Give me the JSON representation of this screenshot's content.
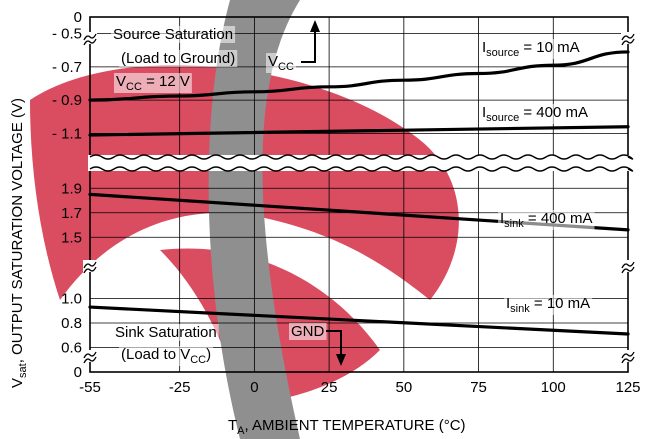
{
  "chart_data": {
    "type": "line",
    "x": [
      -55,
      125
    ],
    "xlabel": {
      "main": "T",
      "sub": "A",
      "rest": ", AMBIENT TEMPERATURE (°C)"
    },
    "ylabel": {
      "main": "V",
      "sub": "sat",
      "rest": ", OUTPUT SATURATION VOLTAGE (V)"
    },
    "xticks": [
      "-55",
      "-25",
      "0",
      "25",
      "50",
      "75",
      "100",
      "125"
    ],
    "xtick_values": [
      -55,
      -25,
      0,
      25,
      50,
      75,
      100,
      125
    ],
    "xlim": [
      -55,
      125
    ],
    "upper_panel": {
      "ylim": [
        -1.2,
        -0.4
      ],
      "ytick_values": [
        -0.5,
        -0.7,
        -0.9,
        -1.1
      ],
      "ytick_labels": [
        "- 0.5",
        "- 0.7",
        "- 0.9",
        "- 1.1"
      ],
      "top_label": "0"
    },
    "lower_panel": {
      "ylim": [
        0.4,
        2.0
      ],
      "ytick_values": [
        1.9,
        1.7,
        1.5,
        1.0,
        0.8,
        0.6
      ],
      "ytick_labels": [
        "1.9",
        "1.7",
        "1.5",
        "1.0",
        "0.8",
        "0.6"
      ],
      "bottom_label": "0"
    },
    "series": [
      {
        "name": "I_source = 10 mA",
        "panel": "upper",
        "x": [
          -55,
          -25,
          0,
          25,
          50,
          75,
          100,
          125
        ],
        "y": [
          -0.9,
          -0.875,
          -0.85,
          -0.82,
          -0.78,
          -0.74,
          -0.69,
          -0.61
        ]
      },
      {
        "name": "I_source = 400 mA",
        "panel": "upper",
        "x": [
          -55,
          125
        ],
        "y": [
          -1.11,
          -1.06
        ]
      },
      {
        "name": "I_sink = 400 mA",
        "panel": "lower",
        "x": [
          -55,
          125
        ],
        "y": [
          1.85,
          1.56
        ]
      },
      {
        "name": "I_sink = 10 mA",
        "panel": "lower",
        "x": [
          -55,
          125
        ],
        "y": [
          0.93,
          0.71
        ]
      }
    ],
    "labels": {
      "source_sat_1": "Source Saturation",
      "source_sat_2": "(Load to Ground)",
      "vcc_cond": {
        "main": "V",
        "sub": "CC",
        "rest": " = 12 V"
      },
      "vcc_arrow": {
        "main": "V",
        "sub": "CC"
      },
      "isource10": {
        "main": "I",
        "sub": "source",
        "rest": " = 10 mA"
      },
      "isource400": {
        "main": "I",
        "sub": "source",
        "rest": " = 400 mA"
      },
      "isink400": {
        "main": "I",
        "sub": "sink",
        "rest": " = 400 mA"
      },
      "isink10": {
        "main": "I",
        "sub": "sink",
        "rest": " = 10 mA"
      },
      "sink_sat_1": "Sink Saturation",
      "sink_sat_2": {
        "main": "(Load to V",
        "sub": "CC",
        "rest": ")"
      },
      "gnd": "GND"
    },
    "grid": true,
    "watermark_colors": {
      "red": "#d6394f",
      "gray": "#8f8f8f"
    }
  }
}
